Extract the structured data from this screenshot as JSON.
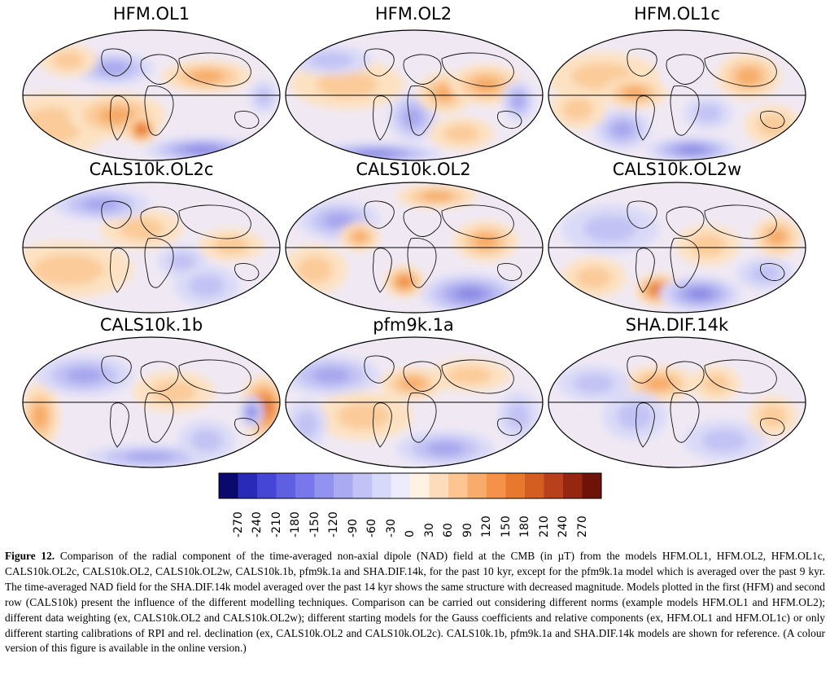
{
  "panels": [
    {
      "title": "HFM.OL1"
    },
    {
      "title": "HFM.OL2"
    },
    {
      "title": "HFM.OL1c"
    },
    {
      "title": "CALS10k.OL2c"
    },
    {
      "title": "CALS10k.OL2"
    },
    {
      "title": "CALS10k.OL2w"
    },
    {
      "title": "CALS10k.1b"
    },
    {
      "title": "pfm9k.1a"
    },
    {
      "title": "SHA.DIF.14k"
    }
  ],
  "colorbar": {
    "ticks": [
      "-270",
      "-240",
      "-210",
      "-180",
      "-150",
      "-120",
      "-90",
      "-60",
      "-30",
      "0",
      "30",
      "60",
      "90",
      "120",
      "150",
      "180",
      "210",
      "240",
      "270"
    ],
    "colors": [
      "#0a0a6e",
      "#2a2ab8",
      "#4646d6",
      "#5f5fe2",
      "#7878ec",
      "#9292f0",
      "#aaaaf2",
      "#c2c2f6",
      "#d8d8fa",
      "#ececfc",
      "#fff2e2",
      "#fddcbc",
      "#fcc592",
      "#f9ab6c",
      "#f39248",
      "#e8782e",
      "#d45d22",
      "#b8401a",
      "#942612",
      "#6e120a"
    ]
  },
  "caption": {
    "label": "Figure 12.",
    "text": "Comparison of the radial component of the time-averaged non-axial dipole (NAD) field at the CMB (in µT) from the models HFM.OL1, HFM.OL2, HFM.OL1c, CALS10k.OL2c, CALS10k.OL2, CALS10k.OL2w, CALS10k.1b, pfm9k.1a and SHA.DIF.14k, for the past 10 kyr, except for the pfm9k.1a model which is averaged over the past 9 kyr. The time-averaged NAD field for the SHA.DIF.14k model averaged over the past 14 kyr shows the same structure with decreased magnitude. Models plotted in the first (HFM) and second row (CALS10k) present the influence of the different modelling techniques. Comparison can be carried out considering different norms (example models HFM.OL1 and HFM.OL2); different data weighting (ex, CALS10k.OL2 and CALS10k.OL2w); different starting models for the Gauss coefficients and relative components (ex, HFM.OL1 and HFM.OL1c) or only different starting calibrations of RPI and rel. declination (ex, CALS10k.OL2 and CALS10k.OL2c). CALS10k.1b, pfm9k.1a and SHA.DIF.14k models are shown for reference. (A colour version of this figure is available in the online version.)"
  }
}
